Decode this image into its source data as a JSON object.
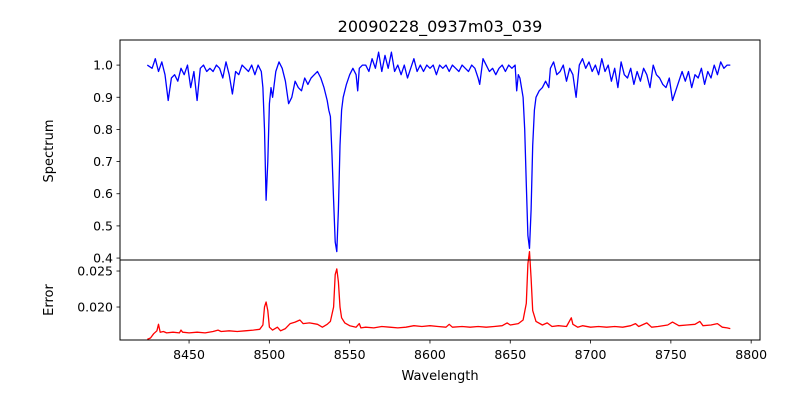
{
  "chart_data": [
    {
      "type": "line",
      "title": "20090228_0937m03_039",
      "xlabel": "",
      "ylabel": "Spectrum",
      "xlim": [
        8407,
        8805.5
      ],
      "ylim": [
        0.394,
        1.078
      ],
      "xticks": [],
      "yticks": [
        0.4,
        0.5,
        0.6,
        0.7,
        0.8,
        0.9,
        1.0
      ],
      "ytick_labels": [
        "0.4",
        "0.5",
        "0.6",
        "0.7",
        "0.8",
        "0.9",
        "1.0"
      ],
      "grid": false,
      "color": "#0000ff",
      "x": [
        8424,
        8427,
        8429,
        8431,
        8433,
        8435,
        8437,
        8439,
        8441,
        8443,
        8445,
        8447,
        8449,
        8451,
        8453,
        8455,
        8457,
        8459,
        8461,
        8463,
        8465,
        8467,
        8469,
        8471,
        8473,
        8475,
        8477,
        8479,
        8481,
        8483,
        8485,
        8487,
        8489,
        8491,
        8493,
        8495,
        8496,
        8497,
        8498,
        8499,
        8500,
        8501,
        8502,
        8504,
        8506,
        8508,
        8510,
        8512,
        8514,
        8516,
        8518,
        8520,
        8522,
        8524,
        8526,
        8528,
        8530,
        8532,
        8534,
        8536,
        8537,
        8538,
        8539,
        8540,
        8541,
        8542,
        8543,
        8544,
        8545,
        8546,
        8548,
        8550,
        8552,
        8554,
        8555,
        8556,
        8558,
        8560,
        8562,
        8564,
        8566,
        8568,
        8570,
        8572,
        8574,
        8576,
        8578,
        8580,
        8582,
        8584,
        8586,
        8588,
        8590,
        8592,
        8594,
        8596,
        8598,
        8600,
        8602,
        8604,
        8606,
        8608,
        8610,
        8612,
        8614,
        8616,
        8618,
        8620,
        8622,
        8624,
        8626,
        8628,
        8630,
        8631,
        8633,
        8635,
        8637,
        8639,
        8641,
        8643,
        8645,
        8647,
        8649,
        8651,
        8653,
        8654,
        8655,
        8656,
        8657,
        8658,
        8659,
        8660,
        8661,
        8662,
        8663,
        8664,
        8665,
        8666,
        8668,
        8670,
        8672,
        8674,
        8675,
        8677,
        8679,
        8681,
        8683,
        8685,
        8687,
        8689,
        8691,
        8693,
        8695,
        8697,
        8699,
        8701,
        8703,
        8705,
        8707,
        8709,
        8711,
        8713,
        8715,
        8717,
        8719,
        8721,
        8723,
        8725,
        8727,
        8729,
        8731,
        8733,
        8735,
        8737,
        8739,
        8741,
        8743,
        8745,
        8747,
        8749,
        8751,
        8753,
        8755,
        8757,
        8759,
        8761,
        8763,
        8765,
        8767,
        8769,
        8771,
        8773,
        8775,
        8777,
        8779,
        8781,
        8783,
        8785,
        8787
      ],
      "y": [
        1.0,
        0.99,
        1.02,
        0.98,
        1.01,
        0.97,
        0.89,
        0.96,
        0.97,
        0.95,
        0.99,
        0.97,
        1.0,
        0.93,
        0.98,
        0.89,
        0.99,
        1.0,
        0.98,
        0.99,
        0.98,
        1.0,
        0.99,
        0.96,
        1.01,
        0.97,
        0.91,
        0.98,
        0.97,
        1.0,
        0.99,
        0.98,
        1.0,
        0.97,
        1.0,
        0.98,
        0.93,
        0.8,
        0.58,
        0.7,
        0.88,
        0.93,
        0.9,
        0.98,
        1.01,
        0.99,
        0.95,
        0.88,
        0.9,
        0.95,
        0.93,
        0.92,
        0.96,
        0.94,
        0.96,
        0.97,
        0.98,
        0.96,
        0.93,
        0.89,
        0.86,
        0.84,
        0.72,
        0.58,
        0.45,
        0.42,
        0.55,
        0.75,
        0.86,
        0.9,
        0.94,
        0.97,
        0.99,
        0.97,
        0.92,
        0.99,
        1.0,
        1.0,
        0.98,
        1.02,
        0.99,
        1.04,
        0.98,
        1.03,
        0.99,
        1.04,
        0.98,
        1.0,
        0.97,
        1.0,
        0.96,
        0.99,
        1.02,
        0.98,
        1.0,
        0.98,
        1.0,
        0.99,
        1.0,
        0.97,
        1.0,
        0.99,
        1.0,
        0.98,
        1.0,
        0.99,
        0.98,
        1.0,
        0.99,
        0.98,
        1.0,
        0.99,
        0.96,
        0.94,
        1.02,
        1.0,
        0.98,
        0.99,
        0.97,
        0.99,
        1.0,
        0.98,
        1.0,
        0.99,
        1.0,
        0.92,
        0.97,
        0.96,
        0.93,
        0.9,
        0.8,
        0.63,
        0.47,
        0.43,
        0.55,
        0.75,
        0.86,
        0.9,
        0.92,
        0.93,
        0.95,
        0.93,
        0.99,
        1.01,
        0.97,
        0.98,
        1.0,
        0.95,
        0.99,
        0.97,
        0.9,
        1.0,
        1.02,
        0.99,
        1.01,
        0.98,
        1.0,
        0.97,
        1.02,
        0.98,
        1.0,
        0.95,
        0.99,
        0.93,
        1.01,
        0.97,
        0.96,
        0.99,
        0.94,
        0.98,
        0.95,
        0.99,
        0.97,
        0.93,
        1.0,
        0.97,
        0.96,
        0.94,
        0.93,
        0.96,
        0.89,
        0.92,
        0.95,
        0.98,
        0.95,
        0.98,
        0.93,
        0.97,
        0.96,
        0.99,
        0.94,
        0.98,
        0.96,
        1.0,
        0.97,
        1.01,
        0.99,
        1.0,
        1.0
      ]
    },
    {
      "type": "line",
      "xlabel": "Wavelength",
      "ylabel": "Error",
      "xlim": [
        8407,
        8805.5
      ],
      "ylim": [
        0.01542,
        0.02653
      ],
      "xticks": [
        8450,
        8500,
        8550,
        8600,
        8650,
        8700,
        8750,
        8800
      ],
      "xtick_labels": [
        "8450",
        "8500",
        "8550",
        "8600",
        "8650",
        "8700",
        "8750",
        "8800"
      ],
      "yticks": [
        0.02,
        0.025
      ],
      "ytick_labels": [
        "0.020",
        "0.025"
      ],
      "grid": false,
      "color": "#ff0000",
      "x": [
        8424,
        8426,
        8428,
        8430,
        8431,
        8432,
        8434,
        8436,
        8440,
        8444,
        8445,
        8446,
        8450,
        8455,
        8460,
        8465,
        8468,
        8470,
        8475,
        8480,
        8485,
        8490,
        8494,
        8496,
        8497,
        8498,
        8499,
        8500,
        8502,
        8505,
        8507,
        8510,
        8513,
        8516,
        8519,
        8521,
        8525,
        8530,
        8533,
        8536,
        8538,
        8540,
        8541,
        8542,
        8543,
        8544,
        8545,
        8547,
        8550,
        8554,
        8556,
        8557,
        8560,
        8565,
        8570,
        8575,
        8580,
        8585,
        8590,
        8595,
        8600,
        8605,
        8610,
        8612,
        8614,
        8620,
        8625,
        8630,
        8635,
        8640,
        8645,
        8648,
        8650,
        8655,
        8658,
        8660,
        8661,
        8662,
        8663,
        8664,
        8666,
        8670,
        8673,
        8676,
        8680,
        8685,
        8688,
        8689,
        8692,
        8695,
        8700,
        8705,
        8710,
        8715,
        8720,
        8725,
        8728,
        8730,
        8735,
        8738,
        8742,
        8748,
        8751,
        8755,
        8760,
        8765,
        8768,
        8770,
        8775,
        8779,
        8782,
        8785,
        8787
      ],
      "y": [
        0.0155,
        0.0157,
        0.0163,
        0.0167,
        0.0176,
        0.0165,
        0.0166,
        0.0164,
        0.0165,
        0.0164,
        0.0168,
        0.0165,
        0.0164,
        0.0165,
        0.0164,
        0.0166,
        0.0168,
        0.0166,
        0.0167,
        0.0166,
        0.0167,
        0.0168,
        0.0169,
        0.0175,
        0.02,
        0.0207,
        0.0195,
        0.0172,
        0.0168,
        0.0172,
        0.0167,
        0.017,
        0.0177,
        0.0179,
        0.0182,
        0.0177,
        0.0178,
        0.0176,
        0.0172,
        0.0176,
        0.018,
        0.02,
        0.0245,
        0.0253,
        0.0235,
        0.02,
        0.0185,
        0.0178,
        0.0174,
        0.0172,
        0.0177,
        0.0171,
        0.0172,
        0.0171,
        0.0173,
        0.0172,
        0.0171,
        0.0172,
        0.0174,
        0.0173,
        0.0174,
        0.0173,
        0.0172,
        0.0176,
        0.0172,
        0.0173,
        0.0172,
        0.0173,
        0.0172,
        0.0173,
        0.0174,
        0.0178,
        0.0175,
        0.0177,
        0.0182,
        0.0205,
        0.026,
        0.0277,
        0.024,
        0.0195,
        0.018,
        0.0175,
        0.0178,
        0.0173,
        0.0174,
        0.0173,
        0.0185,
        0.0176,
        0.0172,
        0.0174,
        0.0172,
        0.0173,
        0.0172,
        0.0173,
        0.0172,
        0.0174,
        0.0177,
        0.0173,
        0.0178,
        0.0172,
        0.0173,
        0.0175,
        0.0179,
        0.0174,
        0.0175,
        0.0176,
        0.018,
        0.0174,
        0.0175,
        0.0177,
        0.0172,
        0.0171,
        0.017
      ]
    }
  ]
}
